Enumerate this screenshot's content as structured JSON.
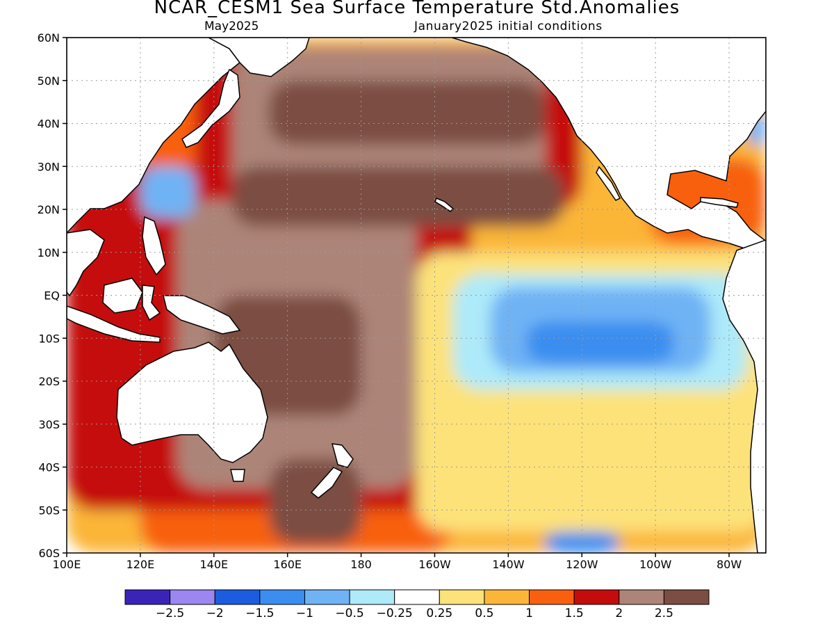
{
  "title": "NCAR_CESM1 Sea Surface Temperature Std.Anomalies",
  "valid_month": "May2025",
  "initial_conditions": "January2025 initial conditions",
  "map": {
    "lon_range": [
      100,
      290
    ],
    "lat_range": [
      -60,
      60
    ],
    "lat_ticks": [
      {
        "value": 60,
        "label": "60N"
      },
      {
        "value": 50,
        "label": "50N"
      },
      {
        "value": 40,
        "label": "40N"
      },
      {
        "value": 30,
        "label": "30N"
      },
      {
        "value": 20,
        "label": "20N"
      },
      {
        "value": 10,
        "label": "10N"
      },
      {
        "value": 0,
        "label": "EQ"
      },
      {
        "value": -10,
        "label": "10S"
      },
      {
        "value": -20,
        "label": "20S"
      },
      {
        "value": -30,
        "label": "30S"
      },
      {
        "value": -40,
        "label": "40S"
      },
      {
        "value": -50,
        "label": "50S"
      },
      {
        "value": -60,
        "label": "60S"
      }
    ],
    "lon_ticks": [
      {
        "value": 100,
        "label": "100E"
      },
      {
        "value": 120,
        "label": "120E"
      },
      {
        "value": 140,
        "label": "140E"
      },
      {
        "value": 160,
        "label": "160E"
      },
      {
        "value": 180,
        "label": "180"
      },
      {
        "value": 200,
        "label": "160W"
      },
      {
        "value": 220,
        "label": "140W"
      },
      {
        "value": 240,
        "label": "120W"
      },
      {
        "value": 260,
        "label": "100W"
      },
      {
        "value": 280,
        "label": "80W"
      }
    ],
    "grid": true
  },
  "colorbar": {
    "colors": [
      "#3a24b8",
      "#9b86f2",
      "#1c5de0",
      "#3a8ef0",
      "#6fb3f5",
      "#aeeaf9",
      "#ffffff",
      "#fde27a",
      "#fbb638",
      "#f8600f",
      "#c50c0c",
      "#ad8478",
      "#7c4d42"
    ],
    "labels": [
      "−2.5",
      "−2",
      "−1.5",
      "−1",
      "−0.5",
      "−0.25",
      "0.25",
      "0.5",
      "1",
      "1.5",
      "2",
      "2.5"
    ]
  },
  "anomaly_regions": [
    {
      "level": 0.5,
      "lon": [
        100,
        290
      ],
      "lat": [
        -60,
        60
      ]
    },
    {
      "level": 1,
      "lon": [
        120,
        205
      ],
      "lat": [
        -60,
        55
      ]
    },
    {
      "level": 1.5,
      "lon": [
        135,
        240
      ],
      "lat": [
        20,
        58
      ]
    },
    {
      "level": 1.5,
      "lon": [
        100,
        210
      ],
      "lat": [
        -50,
        30
      ]
    },
    {
      "level": 2,
      "lon": [
        145,
        230
      ],
      "lat": [
        22,
        58
      ]
    },
    {
      "level": 2,
      "lon": [
        130,
        195
      ],
      "lat": [
        -45,
        22
      ]
    },
    {
      "level": 2.5,
      "lon": [
        155,
        230
      ],
      "lat": [
        35,
        50
      ]
    },
    {
      "level": 2.5,
      "lon": [
        145,
        235
      ],
      "lat": [
        16,
        30
      ]
    },
    {
      "level": 2.5,
      "lon": [
        140,
        180
      ],
      "lat": [
        -28,
        0
      ]
    },
    {
      "level": 2.5,
      "lon": [
        155,
        180
      ],
      "lat": [
        -58,
        -38
      ]
    },
    {
      "level": 1,
      "lon": [
        258,
        290
      ],
      "lat": [
        12,
        32
      ]
    },
    {
      "level": 0.25,
      "lon": [
        195,
        290
      ],
      "lat": [
        -55,
        10
      ]
    },
    {
      "level": -0.25,
      "lon": [
        205,
        285
      ],
      "lat": [
        -22,
        5
      ]
    },
    {
      "level": -0.5,
      "lon": [
        215,
        275
      ],
      "lat": [
        -18,
        2
      ]
    },
    {
      "level": -1,
      "lon": [
        225,
        265
      ],
      "lat": [
        -16,
        -6
      ]
    },
    {
      "level": -1,
      "lon": [
        230,
        250
      ],
      "lat": [
        -60,
        -55
      ]
    },
    {
      "level": -0.5,
      "lon": [
        120,
        135
      ],
      "lat": [
        18,
        30
      ]
    },
    {
      "level": -0.5,
      "lon": [
        285,
        290
      ],
      "lat": [
        35,
        42
      ]
    }
  ]
}
